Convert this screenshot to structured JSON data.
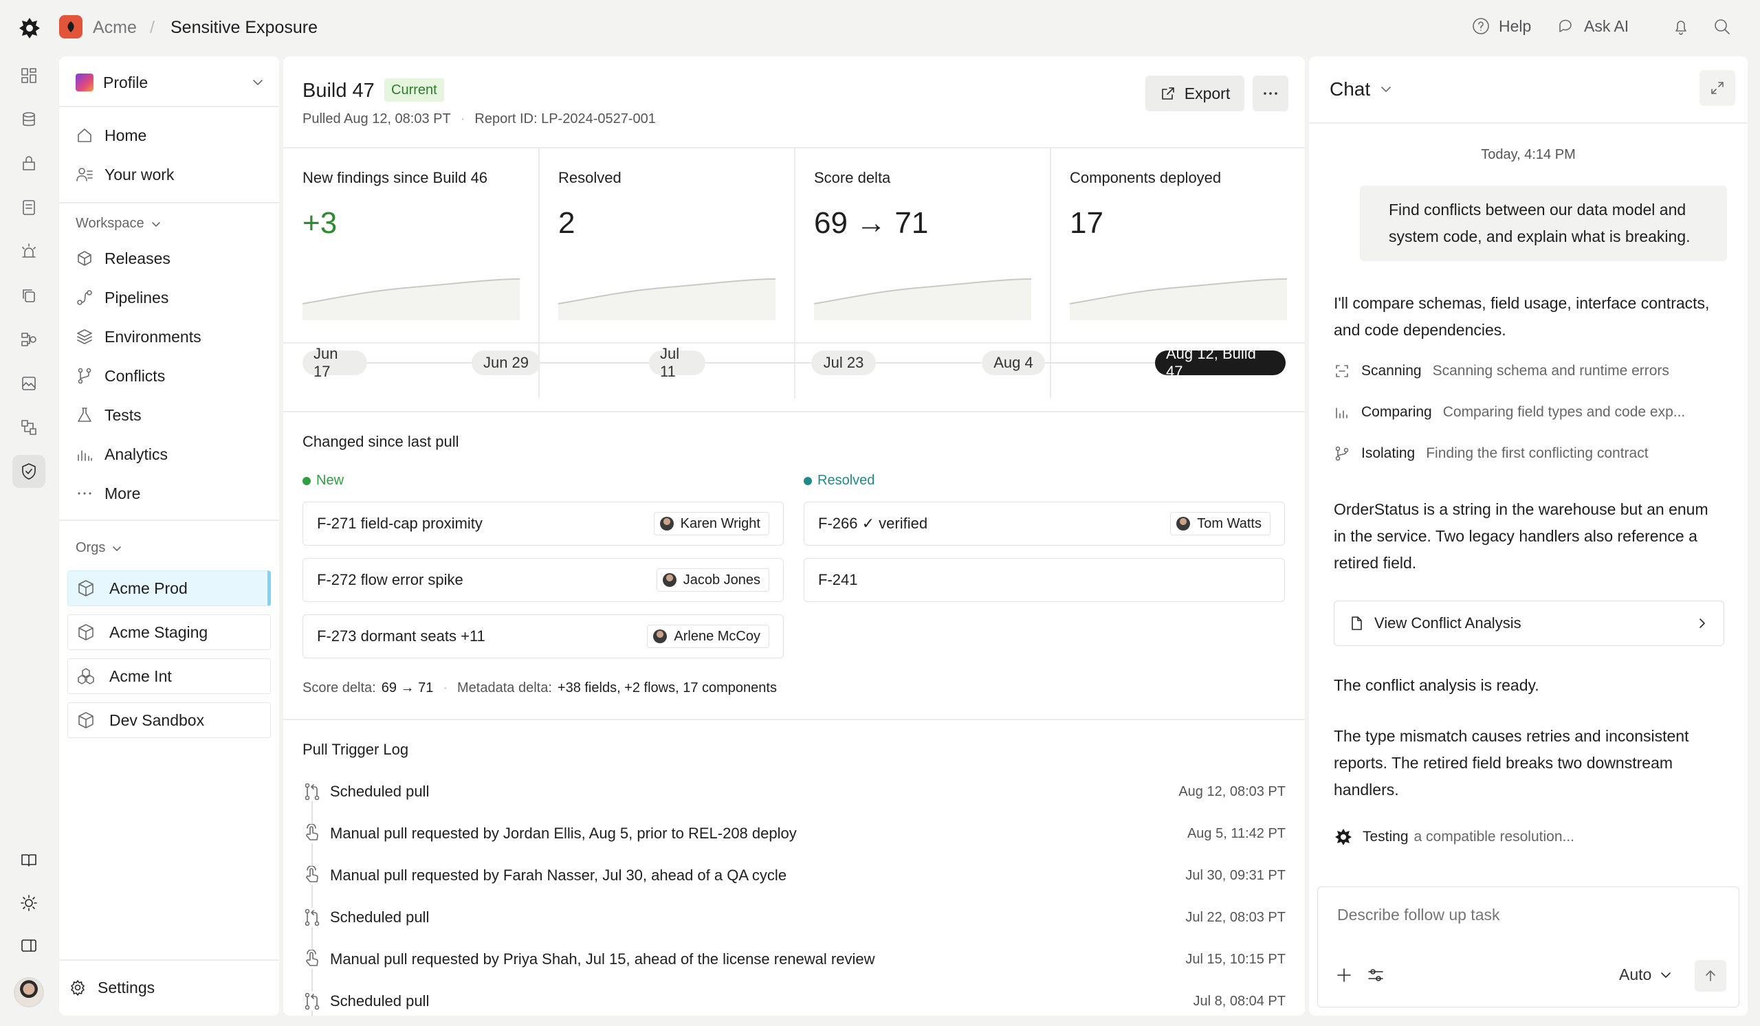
{
  "breadcrumb": {
    "org": "Acme",
    "separator": "/",
    "page": "Sensitive Exposure"
  },
  "top_actions": {
    "help": "Help",
    "ask_ai": "Ask AI"
  },
  "sidebar": {
    "profile": "Profile",
    "nav": [
      {
        "label": "Home",
        "icon": "home-icon"
      },
      {
        "label": "Your work",
        "icon": "user-list-icon"
      }
    ],
    "workspace_label": "Workspace",
    "workspace_items": [
      {
        "label": "Releases",
        "icon": "box-icon"
      },
      {
        "label": "Pipelines",
        "icon": "pipeline-icon"
      },
      {
        "label": "Environments",
        "icon": "layers-icon"
      },
      {
        "label": "Conflicts",
        "icon": "branch-icon"
      },
      {
        "label": "Tests",
        "icon": "flask-icon"
      },
      {
        "label": "Analytics",
        "icon": "bar-chart-icon"
      },
      {
        "label": "More",
        "icon": "more-icon"
      }
    ],
    "orgs_label": "Orgs",
    "orgs": [
      {
        "label": "Acme Prod",
        "active": true
      },
      {
        "label": "Acme Staging",
        "active": false
      },
      {
        "label": "Acme Int",
        "active": false
      },
      {
        "label": "Dev Sandbox",
        "active": false
      }
    ],
    "settings": "Settings"
  },
  "build": {
    "title": "Build 47",
    "badge": "Current",
    "pulled": "Pulled Aug 12, 08:03 PT",
    "dot": "·",
    "report_id": "Report ID: LP-2024-0527-001",
    "export": "Export"
  },
  "metrics": [
    {
      "title": "New findings since Build 46",
      "value": "+3",
      "color": "#2e8b2e"
    },
    {
      "title": "Resolved",
      "value": "2",
      "color": "#1f1f1f"
    },
    {
      "title": "Score delta",
      "value": "69 → 71",
      "color": "#1f1f1f"
    },
    {
      "title": "Components deployed",
      "value": "17",
      "color": "#1f1f1f"
    }
  ],
  "timeline": [
    "Jun 17",
    "Jun 29",
    "Jul 11",
    "Jul 23",
    "Aug 4",
    "Aug 12, Build 47"
  ],
  "changes": {
    "title": "Changed since last pull",
    "new_label": "New",
    "resolved_label": "Resolved",
    "new_color": "#2e9e3e",
    "resolved_color": "#1f8a8a",
    "new_items": [
      {
        "id": "F-271 field-cap proximity",
        "owner": "Karen Wright"
      },
      {
        "id": "F-272 flow error spike",
        "owner": "Jacob Jones"
      },
      {
        "id": "F-273 dormant seats +11",
        "owner": "Arlene McCoy"
      }
    ],
    "resolved_items": [
      {
        "id": "F-266 ✓ verified",
        "owner": "Tom Watts"
      },
      {
        "id": "F-241",
        "owner": ""
      }
    ],
    "score_label": "Score delta:",
    "score_value": "69 → 71",
    "meta_label": "Metadata delta:",
    "meta_value": "+38 fields, +2 flows, 17 components"
  },
  "log": {
    "title": "Pull Trigger Log",
    "rows": [
      {
        "type": "scheduled",
        "text": "Scheduled pull",
        "time": "Aug 12, 08:03 PT"
      },
      {
        "type": "manual",
        "text": "Manual pull requested by Jordan Ellis, Aug 5, prior to REL-208 deploy",
        "time": "Aug 5, 11:42 PT"
      },
      {
        "type": "manual",
        "text": "Manual pull requested by Farah Nasser, Jul 30, ahead of a QA cycle",
        "time": "Jul 30, 09:31 PT"
      },
      {
        "type": "scheduled",
        "text": "Scheduled pull",
        "time": "Jul 22, 08:03 PT"
      },
      {
        "type": "manual",
        "text": "Manual pull requested by Priya Shah, Jul 15, ahead of the license renewal review",
        "time": "Jul 15, 10:15 PT"
      },
      {
        "type": "scheduled",
        "text": "Scheduled pull",
        "time": "Jul 8, 08:04 PT"
      }
    ]
  },
  "chat": {
    "title": "Chat",
    "timestamp": "Today, 4:14 PM",
    "user_msg": "Find conflicts between our data model and system code, and explain what is breaking.",
    "reply1": "I'll compare schemas, field usage, interface contracts, and code dependencies.",
    "steps": [
      {
        "name": "Scanning",
        "desc": "Scanning schema and runtime errors"
      },
      {
        "name": "Comparing",
        "desc": "Comparing field types and code exp..."
      },
      {
        "name": "Isolating",
        "desc": "Finding the first conflicting contract"
      }
    ],
    "reply2": "OrderStatus is a string in the warehouse but an enum in the service. Two legacy handlers also reference a retired field.",
    "analysis_link": "View Conflict Analysis",
    "reply3": "The conflict analysis is ready.",
    "reply4": "The type mismatch causes retries and inconsistent reports. The retired field breaks two downstream handlers.",
    "testing_prefix": "Testing",
    "testing_rest": "a compatible resolution...",
    "input_placeholder": "Describe follow up task",
    "mode": "Auto"
  }
}
